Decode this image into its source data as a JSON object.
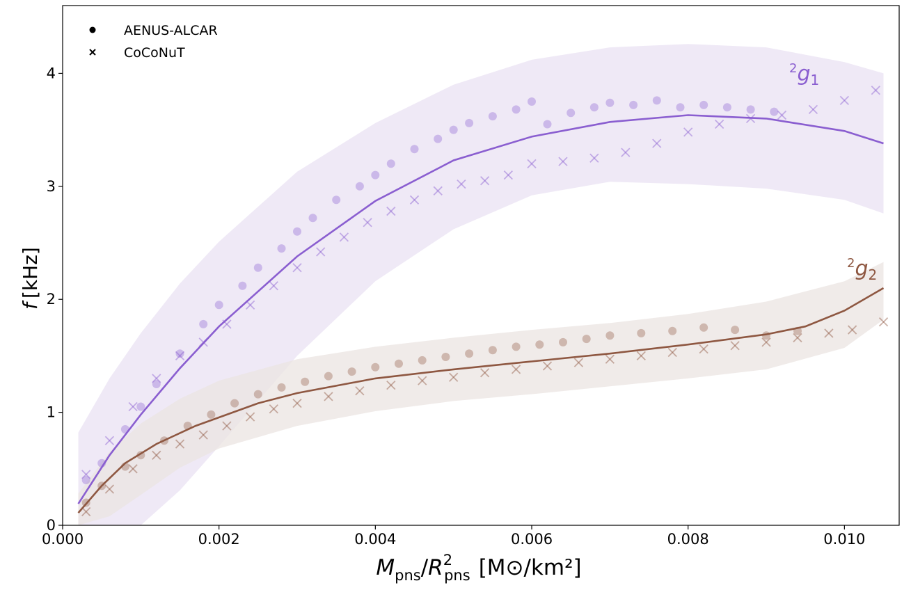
{
  "chart_data": {
    "type": "scatter",
    "xlabel": {
      "base": "M",
      "base_sub": "pns",
      "sep": "/",
      "r": "R",
      "r_sup": "2",
      "r_sub": "pns",
      "units": "[M⊙/km²]"
    },
    "ylabel": {
      "f": "f",
      "unit": "[kHz]"
    },
    "xlim": [
      0.0,
      0.0107
    ],
    "ylim": [
      0,
      4.6
    ],
    "x_ticks": [
      "0.000",
      "0.002",
      "0.004",
      "0.006",
      "0.008",
      "0.010"
    ],
    "x_tick_values": [
      0.0,
      0.002,
      0.004,
      0.006,
      0.008,
      0.01
    ],
    "y_ticks": [
      "0",
      "1",
      "2",
      "3",
      "4"
    ],
    "y_tick_values": [
      0,
      1,
      2,
      3,
      4
    ],
    "grid": false,
    "legend": {
      "position": "top-left",
      "entries": [
        {
          "marker": "dot",
          "label": "AENUS-ALCAR"
        },
        {
          "marker": "cross",
          "label": "CoCoNuT"
        }
      ]
    },
    "series": [
      {
        "mode": "²g₁",
        "label_sup": "2",
        "label_base": "g",
        "label_sub": "1",
        "color": "#8a5ed0",
        "band_color": "#e9e1f3",
        "fit": {
          "x": [
            0.0002,
            0.0006,
            0.001,
            0.0015,
            0.002,
            0.003,
            0.004,
            0.005,
            0.006,
            0.007,
            0.008,
            0.009,
            0.01,
            0.0105
          ],
          "y": [
            0.19,
            0.62,
            0.98,
            1.39,
            1.76,
            2.38,
            2.87,
            3.23,
            3.44,
            3.57,
            3.63,
            3.6,
            3.49,
            3.38
          ]
        },
        "band": {
          "x": [
            0.0002,
            0.0006,
            0.001,
            0.0015,
            0.002,
            0.003,
            0.004,
            0.005,
            0.006,
            0.007,
            0.008,
            0.009,
            0.01,
            0.0105
          ],
          "upper": [
            0.82,
            1.3,
            1.7,
            2.14,
            2.51,
            3.13,
            3.56,
            3.9,
            4.12,
            4.23,
            4.26,
            4.23,
            4.1,
            4.0
          ],
          "lower": [
            -0.1,
            -0.1,
            -0.1,
            0.31,
            0.7,
            1.5,
            2.16,
            2.62,
            2.92,
            3.04,
            3.02,
            2.98,
            2.88,
            2.76
          ]
        },
        "aenus_points": {
          "x": [
            0.0003,
            0.0005,
            0.0008,
            0.001,
            0.0012,
            0.0015,
            0.0018,
            0.002,
            0.0023,
            0.0025,
            0.0028,
            0.003,
            0.0032,
            0.0035,
            0.0038,
            0.004,
            0.0042,
            0.0045,
            0.0048,
            0.005,
            0.0052,
            0.0055,
            0.0058,
            0.006,
            0.0062,
            0.0065,
            0.0068,
            0.007,
            0.0073,
            0.0076,
            0.0079,
            0.0082,
            0.0085,
            0.0088,
            0.0091
          ],
          "y": [
            0.4,
            0.55,
            0.85,
            1.05,
            1.25,
            1.52,
            1.78,
            1.95,
            2.12,
            2.28,
            2.45,
            2.6,
            2.72,
            2.88,
            3.0,
            3.1,
            3.2,
            3.33,
            3.42,
            3.5,
            3.56,
            3.62,
            3.68,
            3.75,
            3.55,
            3.65,
            3.7,
            3.74,
            3.72,
            3.76,
            3.7,
            3.72,
            3.7,
            3.68,
            3.66
          ]
        },
        "coconut_points": {
          "x": [
            0.0003,
            0.0006,
            0.0009,
            0.0012,
            0.0015,
            0.0018,
            0.0021,
            0.0024,
            0.0027,
            0.003,
            0.0033,
            0.0036,
            0.0039,
            0.0042,
            0.0045,
            0.0048,
            0.0051,
            0.0054,
            0.0057,
            0.006,
            0.0064,
            0.0068,
            0.0072,
            0.0076,
            0.008,
            0.0084,
            0.0088,
            0.0092,
            0.0096,
            0.01,
            0.0104
          ],
          "y": [
            0.45,
            0.75,
            1.05,
            1.3,
            1.5,
            1.62,
            1.78,
            1.95,
            2.12,
            2.28,
            2.42,
            2.55,
            2.68,
            2.78,
            2.88,
            2.96,
            3.02,
            3.05,
            3.1,
            3.2,
            3.22,
            3.25,
            3.3,
            3.38,
            3.48,
            3.55,
            3.6,
            3.63,
            3.68,
            3.76,
            3.85
          ]
        }
      },
      {
        "mode": "²g₂",
        "label_sup": "2",
        "label_base": "g",
        "label_sub": "2",
        "color": "#8e5741",
        "band_color": "#ebe4e2",
        "fit": {
          "x": [
            0.0002,
            0.0005,
            0.0008,
            0.0012,
            0.0017,
            0.0025,
            0.003,
            0.004,
            0.005,
            0.006,
            0.007,
            0.008,
            0.009,
            0.0095,
            0.01,
            0.0105
          ],
          "y": [
            0.11,
            0.35,
            0.55,
            0.72,
            0.88,
            1.08,
            1.17,
            1.3,
            1.38,
            1.45,
            1.52,
            1.6,
            1.69,
            1.76,
            1.9,
            2.1
          ]
        },
        "band": {
          "x": [
            0.0002,
            0.0006,
            0.001,
            0.0015,
            0.002,
            0.003,
            0.004,
            0.005,
            0.006,
            0.007,
            0.008,
            0.009,
            0.01,
            0.0105
          ],
          "upper": [
            0.28,
            0.65,
            0.9,
            1.12,
            1.28,
            1.47,
            1.58,
            1.66,
            1.73,
            1.79,
            1.87,
            1.98,
            2.16,
            2.33
          ],
          "lower": [
            -0.05,
            0.08,
            0.27,
            0.51,
            0.68,
            0.88,
            1.01,
            1.1,
            1.16,
            1.23,
            1.3,
            1.38,
            1.57,
            1.82
          ]
        },
        "aenus_points": {
          "x": [
            0.0003,
            0.0005,
            0.0008,
            0.001,
            0.0013,
            0.0016,
            0.0019,
            0.0022,
            0.0025,
            0.0028,
            0.0031,
            0.0034,
            0.0037,
            0.004,
            0.0043,
            0.0046,
            0.0049,
            0.0052,
            0.0055,
            0.0058,
            0.0061,
            0.0064,
            0.0067,
            0.007,
            0.0074,
            0.0078,
            0.0082,
            0.0086,
            0.009,
            0.0094
          ],
          "y": [
            0.2,
            0.35,
            0.52,
            0.62,
            0.75,
            0.88,
            0.98,
            1.08,
            1.16,
            1.22,
            1.27,
            1.32,
            1.36,
            1.4,
            1.43,
            1.46,
            1.49,
            1.52,
            1.55,
            1.58,
            1.6,
            1.62,
            1.65,
            1.68,
            1.7,
            1.72,
            1.75,
            1.73,
            1.68,
            1.72
          ]
        },
        "coconut_points": {
          "x": [
            0.0003,
            0.0006,
            0.0009,
            0.0012,
            0.0015,
            0.0018,
            0.0021,
            0.0024,
            0.0027,
            0.003,
            0.0034,
            0.0038,
            0.0042,
            0.0046,
            0.005,
            0.0054,
            0.0058,
            0.0062,
            0.0066,
            0.007,
            0.0074,
            0.0078,
            0.0082,
            0.0086,
            0.009,
            0.0094,
            0.0098,
            0.0101,
            0.0105
          ],
          "y": [
            0.12,
            0.32,
            0.5,
            0.62,
            0.72,
            0.8,
            0.88,
            0.96,
            1.03,
            1.08,
            1.14,
            1.19,
            1.24,
            1.28,
            1.31,
            1.35,
            1.38,
            1.41,
            1.44,
            1.47,
            1.5,
            1.53,
            1.56,
            1.59,
            1.62,
            1.66,
            1.7,
            1.73,
            1.8
          ]
        }
      }
    ]
  }
}
